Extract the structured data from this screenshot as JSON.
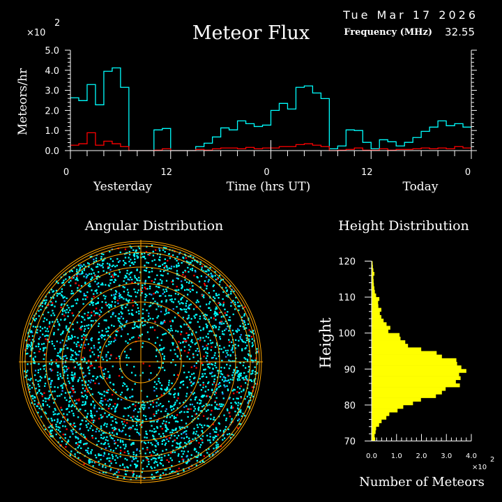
{
  "header": {
    "title": "Meteor Flux",
    "date": "Tue Mar 17 2026",
    "frequency_label": "Frequency (MHz)",
    "frequency_value": "32.55"
  },
  "colors": {
    "background": "#000000",
    "axis": "#ffffff",
    "all_meteors": "#00ffff",
    "underdense": "#ff0000",
    "height_bars": "#ffff00",
    "polar_grid": "#ffa500"
  },
  "chart_data": [
    {
      "type": "line",
      "title": "Meteor Flux",
      "ylabel": "Meteors/hr",
      "yscale_label": "×10",
      "yscale_exp": "2",
      "xlabel": "Time (hrs UT)",
      "day_labels": [
        "Yesterday",
        "Today"
      ],
      "xlim": [
        0,
        48
      ],
      "ylim": [
        0,
        5.0
      ],
      "yticks": [
        "0.0",
        "1.0",
        "2.0",
        "3.0",
        "4.0",
        "5.0"
      ],
      "xtick_labels": [
        "0",
        "12",
        "0",
        "12",
        "0"
      ],
      "step": "hourly",
      "series": [
        {
          "color": "#00ffff",
          "values": [
            2.63,
            2.49,
            3.29,
            2.28,
            3.95,
            4.12,
            3.15,
            0,
            0,
            0,
            1.03,
            1.1,
            0,
            0,
            0,
            0.2,
            0.37,
            0.68,
            1.13,
            1.03,
            1.48,
            1.34,
            1.2,
            1.27,
            2.0,
            2.35,
            2.07,
            3.15,
            3.22,
            2.87,
            2.59,
            0.09,
            0.23,
            1.03,
            1.0,
            0.41,
            0.09,
            0.54,
            0.44,
            0.23,
            0.41,
            0.65,
            0.96,
            1.17,
            1.48,
            1.24,
            1.34,
            1.17
          ]
        },
        {
          "color": "#ff0000",
          "values": [
            0.27,
            0.34,
            0.89,
            0.27,
            0.47,
            0.34,
            0.2,
            0,
            0,
            0,
            0.02,
            0.09,
            0,
            0,
            0,
            0.06,
            0.02,
            0.09,
            0.13,
            0.13,
            0.09,
            0.16,
            0.09,
            0.13,
            0.13,
            0.2,
            0.2,
            0.3,
            0.34,
            0.27,
            0.2,
            0,
            0.02,
            0.06,
            0.13,
            0.02,
            0.02,
            0.09,
            0.02,
            0.06,
            0.06,
            0.09,
            0.13,
            0.09,
            0.13,
            0.09,
            0.2,
            0.13
          ]
        }
      ]
    },
    {
      "type": "scatter",
      "title": "Angular Distribution",
      "projection": "polar",
      "series_colors": [
        "#00ffff",
        "#ff0000",
        "#1e90ff"
      ]
    },
    {
      "type": "bar",
      "orientation": "horizontal",
      "title": "Height Distribution",
      "ylabel": "Height",
      "xlabel": "Number of Meteors",
      "xscale_label": "×10",
      "xscale_exp": "2",
      "ylim": [
        70,
        120
      ],
      "xlim": [
        0,
        4.0
      ],
      "yticks": [
        "70",
        "80",
        "90",
        "100",
        "110",
        "120"
      ],
      "xticks": [
        "0.0",
        "1.0",
        "2.0",
        "3.0",
        "4.0"
      ],
      "bin_start": 70,
      "bin_width": 1,
      "values": [
        0.14,
        0.12,
        0.16,
        0.18,
        0.3,
        0.4,
        0.59,
        0.71,
        1.04,
        1.27,
        1.66,
        1.98,
        2.58,
        2.82,
        2.97,
        3.54,
        3.38,
        3.57,
        3.51,
        3.8,
        3.6,
        3.43,
        3.4,
        2.82,
        2.61,
        1.99,
        1.46,
        1.35,
        1.16,
        1.12,
        0.67,
        0.75,
        0.6,
        0.48,
        0.39,
        0.33,
        0.39,
        0.27,
        0.26,
        0.31,
        0.18,
        0.13,
        0.11,
        0.09,
        0.08,
        0.07,
        0.11,
        0.07,
        0.05,
        0.04
      ]
    }
  ]
}
